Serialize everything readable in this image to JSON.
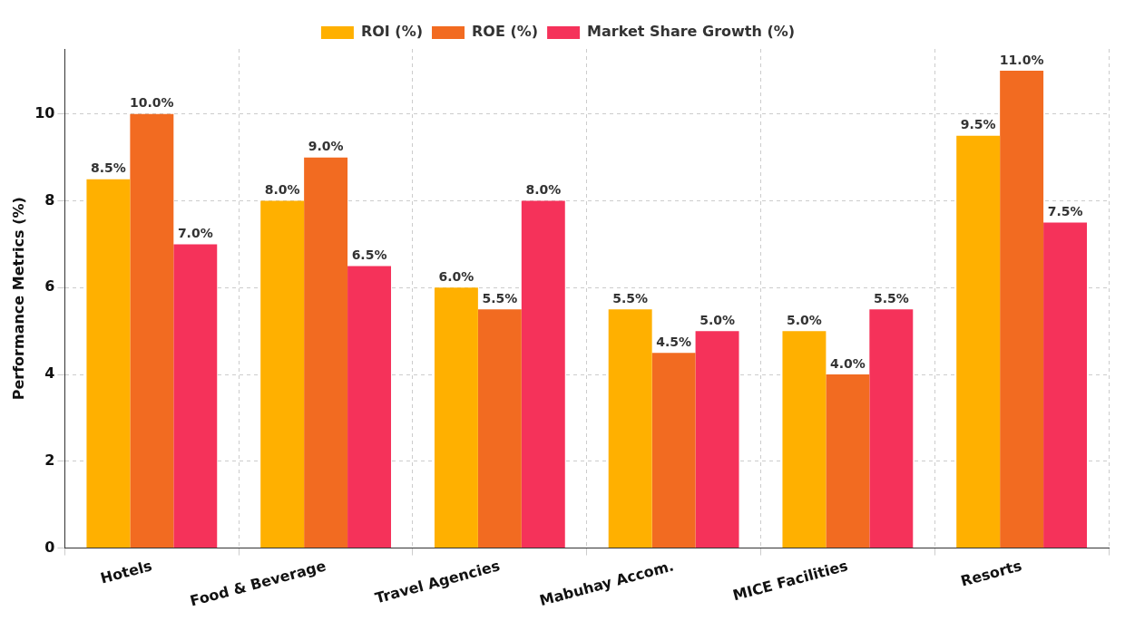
{
  "chart_data": {
    "type": "bar",
    "ylabel": "Performance Metrics (%)",
    "categories": [
      "Hotels",
      "Food & Beverage",
      "Travel Agencies",
      "Mabuhay Accom.",
      "MICE Facilities",
      "Resorts"
    ],
    "series": [
      {
        "name": "ROI (%)",
        "color": "#ffb000",
        "values": [
          8.5,
          8.0,
          6.0,
          5.5,
          5.0,
          9.5
        ],
        "value_labels": [
          "8.5%",
          "8.0%",
          "6.0%",
          "5.5%",
          "5.0%",
          "9.5%"
        ]
      },
      {
        "name": "ROE (%)",
        "color": "#f26b21",
        "values": [
          10.0,
          9.0,
          5.5,
          4.5,
          4.0,
          11.0
        ],
        "value_labels": [
          "10.0%",
          "9.0%",
          "5.5%",
          "4.5%",
          "4.0%",
          "11.0%"
        ]
      },
      {
        "name": "Market Share Growth (%)",
        "color": "#f5325a",
        "values": [
          7.0,
          6.5,
          8.0,
          5.0,
          5.5,
          7.5
        ],
        "value_labels": [
          "7.0%",
          "6.5%",
          "8.0%",
          "5.0%",
          "5.5%",
          "7.5%"
        ]
      }
    ],
    "ylim": [
      0,
      11.5
    ],
    "yticks": [
      0,
      2,
      4,
      6,
      8,
      10
    ],
    "grid": true,
    "legend": "top"
  }
}
